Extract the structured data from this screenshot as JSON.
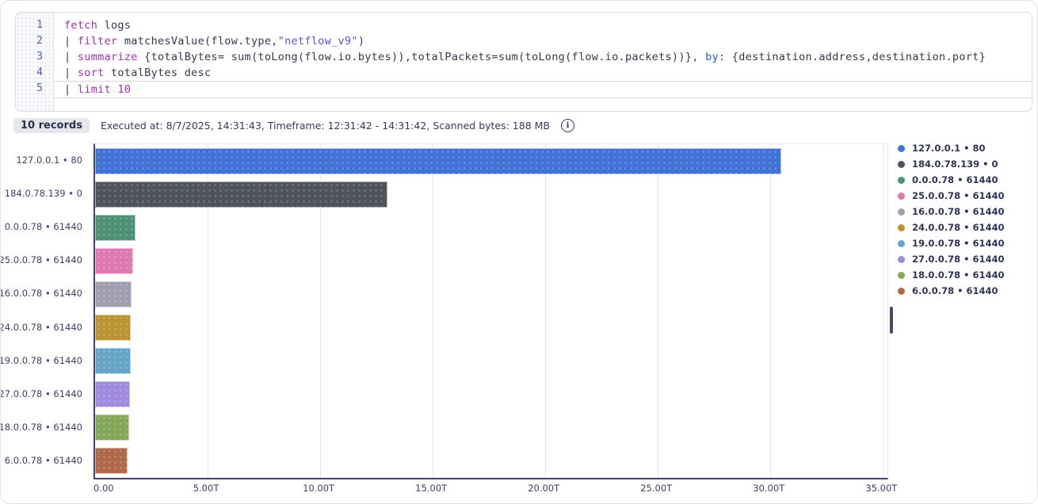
{
  "editor": {
    "active_line": 5,
    "lines": [
      {
        "number": "1",
        "segments": [
          {
            "c": "kw",
            "t": "fetch"
          },
          {
            "c": "d",
            "t": " logs"
          }
        ]
      },
      {
        "number": "2",
        "segments": [
          {
            "c": "d",
            "t": "| "
          },
          {
            "c": "kw",
            "t": "filter"
          },
          {
            "c": "d",
            "t": " matchesValue(flow.type,"
          },
          {
            "c": "s",
            "t": "\"netflow_v9\""
          },
          {
            "c": "d",
            "t": ")"
          }
        ]
      },
      {
        "number": "3",
        "segments": [
          {
            "c": "d",
            "t": "| "
          },
          {
            "c": "kw",
            "t": "summarize"
          },
          {
            "c": "d",
            "t": " {totalBytes= sum(toLong(flow.io.bytes)),totalPackets=sum(toLong(flow.io.packets))}, "
          },
          {
            "c": "b",
            "t": "by:"
          },
          {
            "c": "d",
            "t": " {destination.address,destination.port}"
          }
        ]
      },
      {
        "number": "4",
        "segments": [
          {
            "c": "d",
            "t": "| "
          },
          {
            "c": "kw",
            "t": "sort"
          },
          {
            "c": "d",
            "t": " totalBytes desc"
          }
        ]
      },
      {
        "number": "5",
        "segments": [
          {
            "c": "d",
            "t": "| "
          },
          {
            "c": "kw",
            "t": "limit"
          },
          {
            "c": "d",
            "t": " "
          },
          {
            "c": "n",
            "t": "10"
          }
        ]
      }
    ]
  },
  "status": {
    "records_badge": "10 records",
    "execution_info": "Executed at: 8/7/2025, 14:31:43, Timeframe: 12:31:42 - 14:31:42, Scanned bytes: 188 MB",
    "info_icon_glyph": "i"
  },
  "chart_data": {
    "type": "bar",
    "orientation": "horizontal",
    "title": "",
    "xlabel": "",
    "ylabel": "",
    "categories": [
      "127.0.0.1 • 80",
      "184.0.78.139 • 0",
      "0.0.0.78 • 61440",
      "25.0.0.78 • 61440",
      "16.0.0.78 • 61440",
      "24.0.0.78 • 61440",
      "19.0.0.78 • 61440",
      "27.0.0.78 • 61440",
      "18.0.0.78 • 61440",
      "6.0.0.78 • 61440"
    ],
    "series": [
      {
        "name": "totalBytes",
        "unit": "T",
        "values": [
          30.5,
          13.0,
          1.8,
          1.7,
          1.62,
          1.6,
          1.58,
          1.55,
          1.5,
          1.45
        ]
      }
    ],
    "colors": [
      "#4272D6",
      "#50535C",
      "#4E9176",
      "#DD7AB0",
      "#A09FB1",
      "#BC9434",
      "#67A5C8",
      "#9F8ADE",
      "#83A858",
      "#B06A4A"
    ],
    "x_tick_labels": [
      "0.00",
      "5.00T",
      "10.00T",
      "15.00T",
      "20.00T",
      "25.00T",
      "30.00T",
      "35.00T"
    ],
    "x_tick_values": [
      0,
      5,
      10,
      15,
      20,
      25,
      30,
      35
    ],
    "xlim": [
      0,
      35.2
    ],
    "grid": "vertical",
    "legend_position": "right",
    "axis_color": "#3F4468",
    "grid_color": "#E4E4EA",
    "label_color": "#3B4066"
  }
}
